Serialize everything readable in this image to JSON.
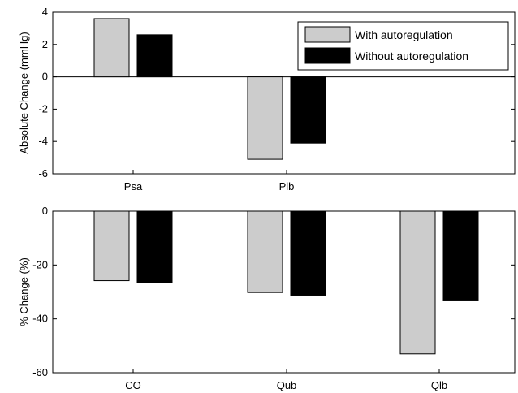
{
  "colors": {
    "background": "#ffffff",
    "with_autoregulation": "#cccccc",
    "without_autoregulation": "#000000",
    "axes": "#000000"
  },
  "legend": {
    "placement": "top-right",
    "entries": [
      "With autoregulation",
      "Without autoregulation"
    ]
  },
  "chart_data": [
    {
      "type": "bar",
      "ylabel": "Absolute Change (mmHg)",
      "xlabel": "",
      "title": "",
      "ylim": [
        -6,
        4
      ],
      "yticks": [
        4,
        2,
        0,
        -2,
        -4,
        -6
      ],
      "grid": false,
      "categories": [
        "Psa",
        "Plb"
      ],
      "category_slots": 3,
      "series": [
        {
          "name": "With autoregulation",
          "values": [
            3.6,
            -5.1
          ]
        },
        {
          "name": "Without autoregulation",
          "values": [
            2.6,
            -4.1
          ]
        }
      ]
    },
    {
      "type": "bar",
      "ylabel": "% Change (%)",
      "xlabel": "",
      "title": "",
      "ylim": [
        -60,
        0
      ],
      "yticks": [
        0,
        -20,
        -40,
        -60
      ],
      "grid": false,
      "categories": [
        "CO",
        "Qub",
        "Qlb"
      ],
      "category_slots": 3,
      "series": [
        {
          "name": "With autoregulation",
          "values": [
            -25.8,
            -30.2,
            -53.0
          ]
        },
        {
          "name": "Without autoregulation",
          "values": [
            -26.6,
            -31.2,
            -33.3
          ]
        }
      ]
    }
  ]
}
